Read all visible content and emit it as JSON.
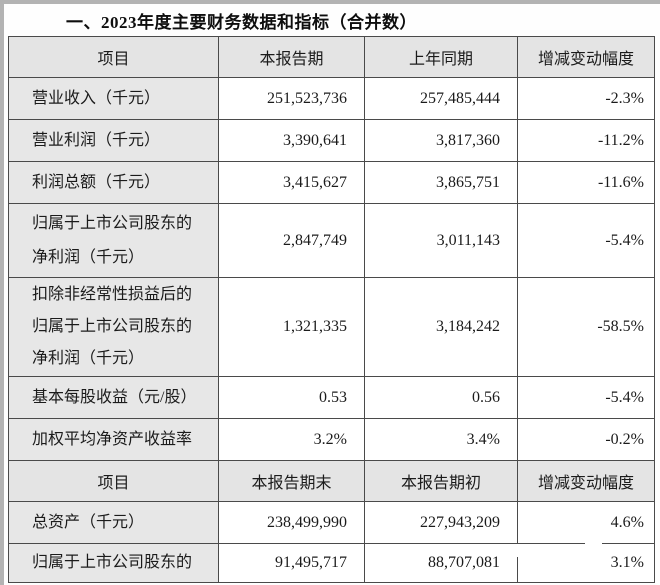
{
  "title": "一、2023年度主要财务数据和指标（合并数）",
  "table": {
    "sections": [
      {
        "header": [
          "项目",
          "本报告期",
          "上年同期",
          "增减变动幅度"
        ],
        "rows": [
          {
            "item": "营业收入（千元）",
            "current": "251,523,736",
            "prior": "257,485,444",
            "change": "-2.3%"
          },
          {
            "item": "营业利润（千元）",
            "current": "3,390,641",
            "prior": "3,817,360",
            "change": "-11.2%"
          },
          {
            "item": "利润总额（千元）",
            "current": "3,415,627",
            "prior": "3,865,751",
            "change": "-11.6%"
          },
          {
            "item": "归属于上市公司股东的\n净利润（千元）",
            "current": "2,847,749",
            "prior": "3,011,143",
            "change": "-5.4%"
          },
          {
            "item": "扣除非经常性损益后的\n归属于上市公司股东的\n净利润（千元）",
            "current": "1,321,335",
            "prior": "3,184,242",
            "change": "-58.5%"
          },
          {
            "item": "基本每股收益（元/股）",
            "current": "0.53",
            "prior": "0.56",
            "change": "-5.4%"
          },
          {
            "item": "加权平均净资产收益率",
            "current": "3.2%",
            "prior": "3.4%",
            "change": "-0.2%"
          }
        ]
      },
      {
        "header": [
          "项目",
          "本报告期末",
          "本报告期初",
          "增减变动幅度"
        ],
        "rows": [
          {
            "item": "总资产（千元）",
            "current": "238,499,990",
            "prior": "227,943,209",
            "change": "4.6%"
          },
          {
            "item": "归属于上市公司股东的",
            "current": "91,495,717",
            "prior": "88,707,081",
            "change": "3.1%"
          }
        ]
      }
    ]
  }
}
